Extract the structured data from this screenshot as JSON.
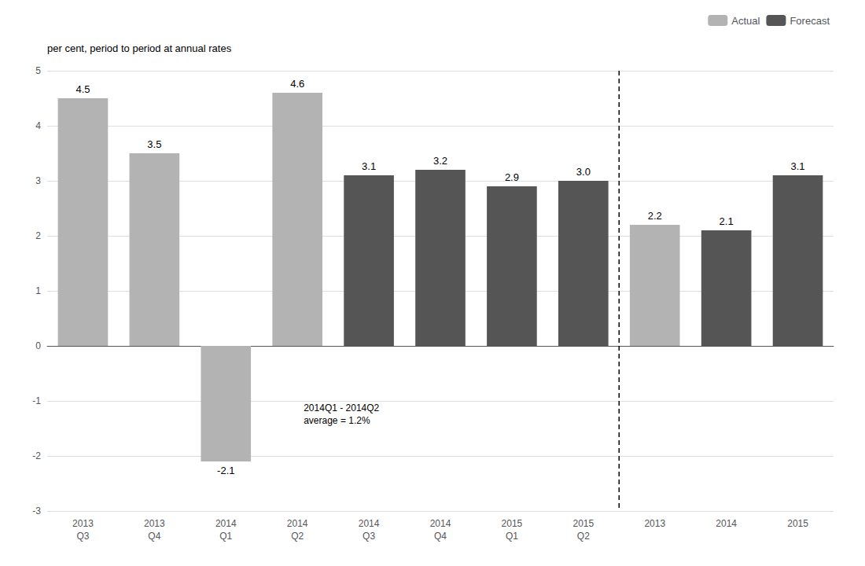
{
  "chart_data": {
    "type": "bar",
    "ylabel": "per cent, period to period at annual rates",
    "categories": [
      "2013\nQ3",
      "2013\nQ4",
      "2014\nQ1",
      "2014\nQ2",
      "2014\nQ3",
      "2014\nQ4",
      "2015\nQ1",
      "2015\nQ2",
      "2013",
      "2014",
      "2015"
    ],
    "series": [
      {
        "name": "Actual",
        "color": "#b3b3b3",
        "values": [
          4.5,
          3.5,
          -2.1,
          4.6,
          null,
          null,
          null,
          null,
          2.2,
          null,
          null
        ],
        "value_labels": [
          "4.5",
          "3.5",
          "-2.1",
          "4.6",
          null,
          null,
          null,
          null,
          "2.2",
          null,
          null
        ]
      },
      {
        "name": "Forecast",
        "color": "#555555",
        "values": [
          null,
          null,
          null,
          null,
          3.1,
          3.2,
          2.9,
          3.0,
          null,
          2.1,
          3.1
        ],
        "value_labels": [
          null,
          null,
          null,
          null,
          "3.1",
          "3.2",
          "2.9",
          "3.0",
          null,
          "2.1",
          "3.1"
        ]
      }
    ],
    "ylim": [
      -3,
      5
    ],
    "yticks": [
      -3,
      -2,
      -1,
      0,
      1,
      2,
      3,
      4,
      5
    ],
    "grid": true,
    "legend": "upper right",
    "data_labels": true,
    "annotations": [
      "2014Q1 - 2014Q2\naverage = 1.2%"
    ]
  }
}
